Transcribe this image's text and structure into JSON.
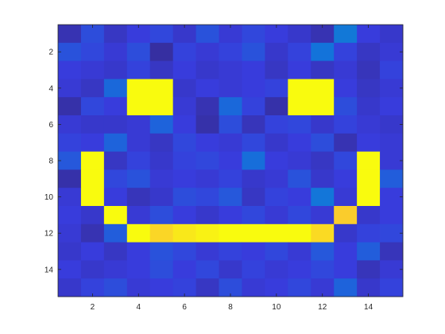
{
  "chart_data": {
    "type": "heatmap",
    "title": "",
    "xlabel": "",
    "ylabel": "",
    "rows": 15,
    "cols": 15,
    "xlim": [
      0.5,
      15.5
    ],
    "ylim": [
      0.5,
      15.5
    ],
    "y_reversed": true,
    "x_ticks": [
      2,
      4,
      6,
      8,
      10,
      12,
      14
    ],
    "y_ticks": [
      2,
      4,
      6,
      8,
      10,
      12,
      14
    ],
    "x_tick_labels": [
      "2",
      "4",
      "6",
      "8",
      "10",
      "12",
      "14"
    ],
    "y_tick_labels": [
      "2",
      "4",
      "6",
      "8",
      "10",
      "12",
      "14"
    ],
    "grid": false,
    "colormap": "parula",
    "color_range": [
      0,
      1
    ],
    "values": [
      [
        0.05,
        0.13,
        0.07,
        0.1,
        0.12,
        0.08,
        0.14,
        0.09,
        0.12,
        0.1,
        0.08,
        0.05,
        0.22,
        0.1,
        0.08
      ],
      [
        0.14,
        0.12,
        0.09,
        0.13,
        0.03,
        0.11,
        0.09,
        0.11,
        0.14,
        0.08,
        0.11,
        0.2,
        0.11,
        0.07,
        0.09
      ],
      [
        0.1,
        0.09,
        0.08,
        0.11,
        0.07,
        0.1,
        0.08,
        0.09,
        0.1,
        0.07,
        0.1,
        0.07,
        0.09,
        0.06,
        0.11
      ],
      [
        0.09,
        0.07,
        0.18,
        1.0,
        1.0,
        0.08,
        0.1,
        0.09,
        0.1,
        0.11,
        1.0,
        1.0,
        0.1,
        0.07,
        0.09
      ],
      [
        0.04,
        0.12,
        0.1,
        1.0,
        1.0,
        0.09,
        0.05,
        0.18,
        0.11,
        0.04,
        1.0,
        1.0,
        0.13,
        0.08,
        0.1
      ],
      [
        0.09,
        0.08,
        0.08,
        0.09,
        0.17,
        0.1,
        0.04,
        0.13,
        0.06,
        0.11,
        0.12,
        0.08,
        0.11,
        0.09,
        0.08
      ],
      [
        0.11,
        0.1,
        0.17,
        0.09,
        0.07,
        0.12,
        0.1,
        0.09,
        0.12,
        0.08,
        0.1,
        0.13,
        0.05,
        0.1,
        0.09
      ],
      [
        0.15,
        1.0,
        0.07,
        0.11,
        0.08,
        0.11,
        0.12,
        0.1,
        0.19,
        0.1,
        0.09,
        0.07,
        0.12,
        1.0,
        0.09
      ],
      [
        0.04,
        1.0,
        0.12,
        0.14,
        0.09,
        0.1,
        0.09,
        0.11,
        0.08,
        0.09,
        0.14,
        0.08,
        0.1,
        1.0,
        0.16
      ],
      [
        0.09,
        1.0,
        0.1,
        0.06,
        0.08,
        0.13,
        0.12,
        0.15,
        0.07,
        0.11,
        0.1,
        0.21,
        0.09,
        1.0,
        0.1
      ],
      [
        0.1,
        0.08,
        1.0,
        0.09,
        0.13,
        0.1,
        0.08,
        0.1,
        0.12,
        0.09,
        0.12,
        0.09,
        0.9,
        0.08,
        0.1
      ],
      [
        0.09,
        0.05,
        0.16,
        1.0,
        0.92,
        0.96,
        0.98,
        1.0,
        1.0,
        1.0,
        1.0,
        0.93,
        0.08,
        0.11,
        0.12
      ],
      [
        0.08,
        0.1,
        0.07,
        0.1,
        0.14,
        0.12,
        0.09,
        0.11,
        0.1,
        0.12,
        0.09,
        0.15,
        0.1,
        0.16,
        0.06
      ],
      [
        0.1,
        0.08,
        0.09,
        0.1,
        0.13,
        0.1,
        0.12,
        0.08,
        0.11,
        0.09,
        0.1,
        0.12,
        0.1,
        0.06,
        0.09
      ],
      [
        0.08,
        0.11,
        0.13,
        0.09,
        0.1,
        0.11,
        0.07,
        0.13,
        0.09,
        0.1,
        0.12,
        0.09,
        0.17,
        0.08,
        0.11
      ]
    ]
  }
}
